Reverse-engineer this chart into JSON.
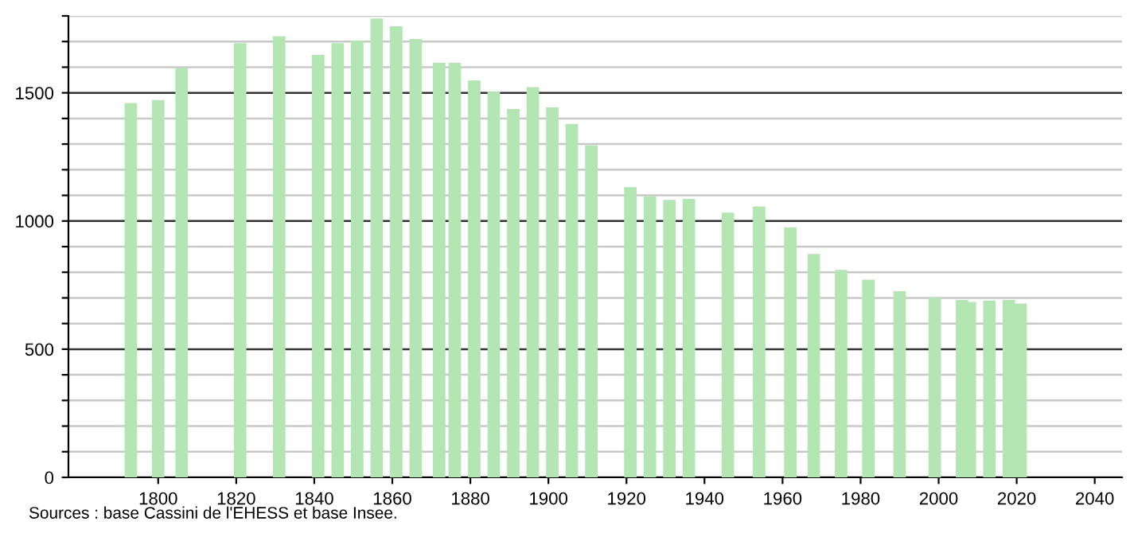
{
  "chart_data": {
    "type": "bar",
    "x": [
      1793,
      1800,
      1806,
      1821,
      1831,
      1841,
      1846,
      1851,
      1856,
      1861,
      1866,
      1872,
      1876,
      1881,
      1886,
      1891,
      1896,
      1901,
      1906,
      1911,
      1921,
      1926,
      1931,
      1936,
      1946,
      1954,
      1962,
      1968,
      1975,
      1982,
      1990,
      1999,
      2006,
      2008,
      2013,
      2018,
      2021
    ],
    "values": [
      1460,
      1472,
      1597,
      1694,
      1721,
      1648,
      1694,
      1704,
      1790,
      1760,
      1710,
      1617,
      1617,
      1549,
      1505,
      1437,
      1522,
      1443,
      1379,
      1296,
      1132,
      1097,
      1082,
      1086,
      1033,
      1057,
      975,
      871,
      809,
      771,
      726,
      701,
      692,
      684,
      690,
      692,
      678
    ],
    "color": "#b3e6b3",
    "xlim": [
      1777,
      2047
    ],
    "xticks": [
      1800,
      1820,
      1840,
      1860,
      1880,
      1900,
      1920,
      1940,
      1960,
      1980,
      2000,
      2020,
      2040
    ],
    "ylim": [
      0,
      1800
    ],
    "yticks": [
      0,
      {
        "value": 100,
        "label": null
      },
      {
        "value": 200,
        "label": null
      },
      {
        "value": 300,
        "label": null
      },
      {
        "value": 400,
        "label": null
      },
      500,
      {
        "value": 600,
        "label": null
      },
      {
        "value": 700,
        "label": null
      },
      {
        "value": 800,
        "label": null
      },
      {
        "value": 900,
        "label": null
      },
      1000,
      {
        "value": 1100,
        "label": null
      },
      {
        "value": 1200,
        "label": null
      },
      {
        "value": 1300,
        "label": null
      },
      {
        "value": 1400,
        "label": null
      },
      1500,
      {
        "value": 1600,
        "label": null
      },
      {
        "value": 1700,
        "label": null
      },
      {
        "value": 1800,
        "label": null
      }
    ],
    "grid": "y",
    "legend": false,
    "annotations": [
      "Sources : base Cassini de l'EHESS et base Insee."
    ]
  }
}
